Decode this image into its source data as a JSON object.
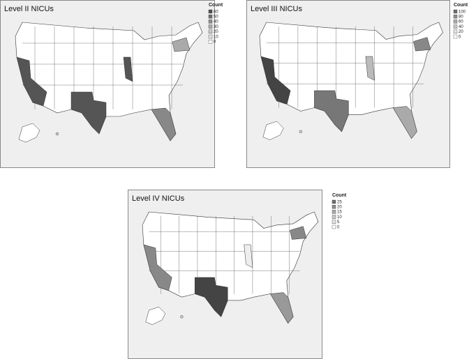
{
  "panels": [
    {
      "title": "Level II NICUs",
      "legend": {
        "title": "Count",
        "labels": [
          60,
          50,
          40,
          30,
          20,
          10,
          0
        ]
      }
    },
    {
      "title": "Level III NICUs",
      "legend": {
        "title": "Count",
        "labels": [
          100,
          80,
          60,
          40,
          20,
          0
        ]
      }
    },
    {
      "title": "Level IV NICUs",
      "legend": {
        "title": "Count",
        "labels": [
          25,
          20,
          15,
          10,
          5,
          0
        ]
      }
    }
  ]
}
